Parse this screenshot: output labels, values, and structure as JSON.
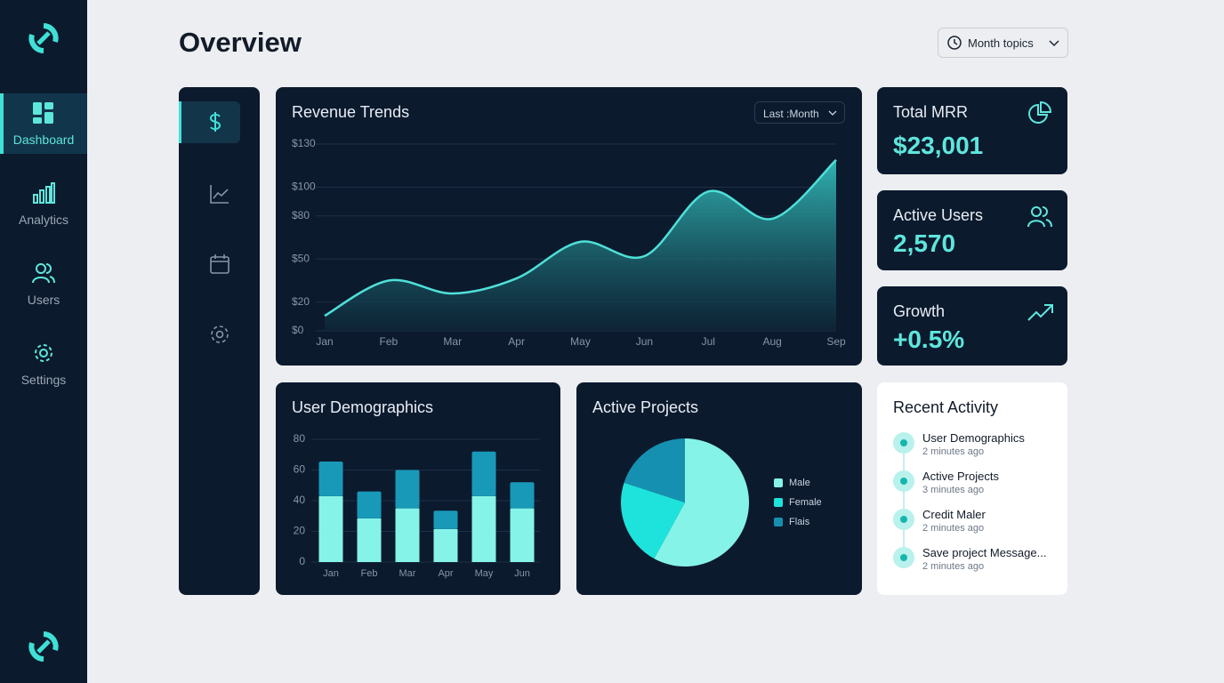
{
  "sidebar": {
    "items": [
      "Dashboard",
      "Analytics",
      "Users",
      "Settings"
    ]
  },
  "header": {
    "title": "Overview",
    "dropdown": "Month topics"
  },
  "kpis": [
    {
      "label": "Total MRR",
      "value": "$23,001"
    },
    {
      "label": "Active Users",
      "value": "2,570"
    },
    {
      "label": "Growth",
      "value": "+0.5%"
    }
  ],
  "recent_activity": {
    "title": "Recent Activity",
    "items": [
      {
        "title": "User Demographics",
        "time": "2 minutes ago"
      },
      {
        "title": "Active Projects",
        "time": "3 minutes ago"
      },
      {
        "title": "Credit Maler",
        "time": "2 minutes ago"
      },
      {
        "title": "Save project Message...",
        "time": "2 minutes ago"
      }
    ]
  },
  "chart_data": [
    {
      "type": "area",
      "title": "Revenue Trends",
      "dropdown": "Last :Month",
      "categories": [
        "Jan",
        "Feb",
        "Mar",
        "Apr",
        "May",
        "Jun",
        "Jul",
        "Aug",
        "Sep"
      ],
      "values": [
        10.5,
        35,
        26,
        36.5,
        62,
        52,
        97,
        78,
        119
      ],
      "color": "#4ee0d8",
      "ylim": [
        0,
        130
      ],
      "yticks": [
        {
          "value": 130,
          "label": "$130"
        },
        {
          "value": 100,
          "label": "$100"
        },
        {
          "value": 80,
          "label": "$80"
        },
        {
          "value": 50,
          "label": "$50"
        },
        {
          "value": 20,
          "label": "$20"
        },
        {
          "value": 0,
          "label": "$0"
        }
      ],
      "grid": true
    },
    {
      "type": "bar",
      "stacked": true,
      "title": "User Demographics",
      "categories": [
        "Jan",
        "Feb",
        "Mar",
        "Apr",
        "May",
        "Jun"
      ],
      "series": [
        {
          "color": "#86f3e8",
          "values": [
            43,
            28.5,
            35,
            21.5,
            43,
            35
          ]
        },
        {
          "color": "#1899b8",
          "values": [
            22.5,
            17.5,
            25,
            12,
            29,
            17
          ]
        }
      ],
      "ylim": [
        0,
        80
      ],
      "yticks": [
        0,
        20,
        40,
        60,
        80
      ],
      "grid": true
    },
    {
      "type": "pie",
      "title": "Active Projects",
      "categories": [
        "Male",
        "Female",
        "Flais"
      ],
      "values": [
        58,
        22,
        20
      ],
      "colors": [
        "#86f3e8",
        "#1ee3dc",
        "#1690b0"
      ],
      "legend": "right"
    }
  ]
}
